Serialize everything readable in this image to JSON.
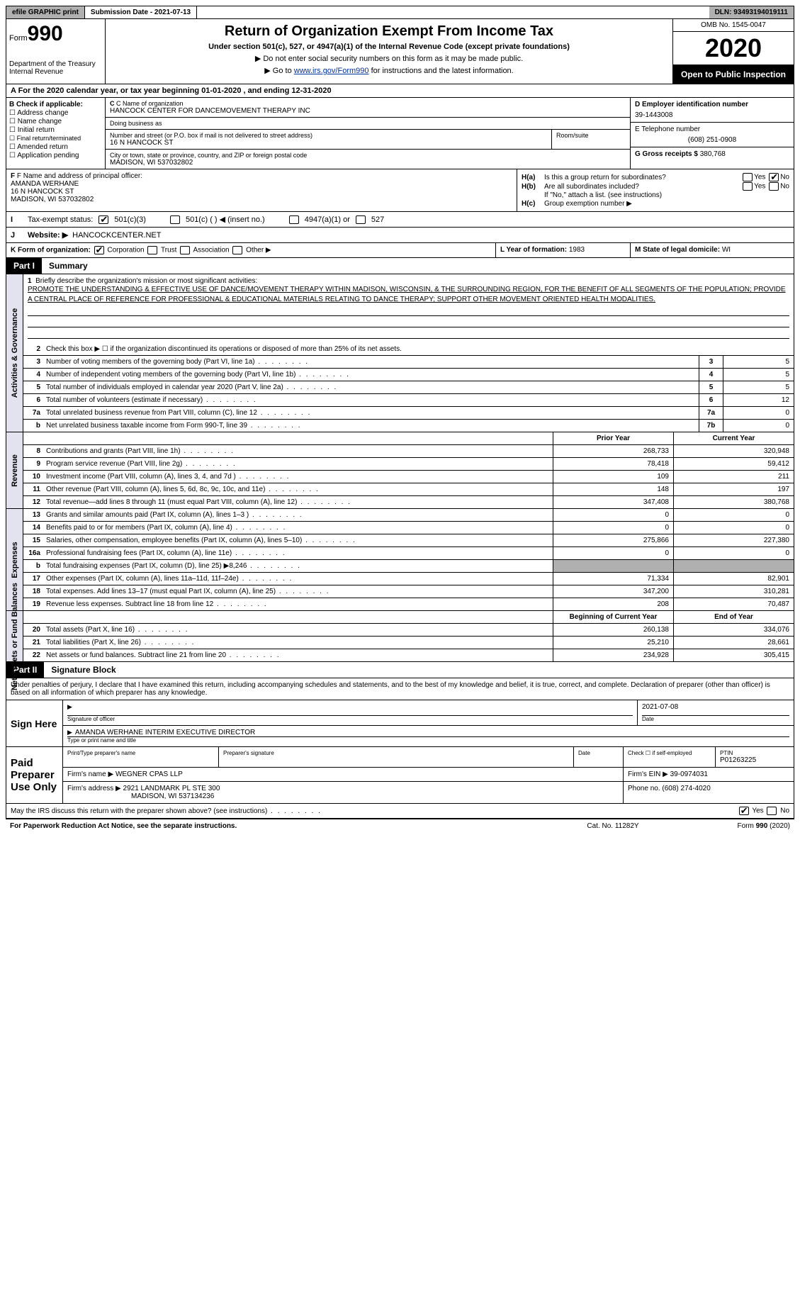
{
  "topbar": {
    "efile": "efile GRAPHIC print",
    "submission": "Submission Date - 2021-07-13",
    "dln": "DLN: 93493194019111"
  },
  "header": {
    "form_prefix": "Form",
    "form_number": "990",
    "dept": "Department of the Treasury",
    "irs": "Internal Revenue",
    "title": "Return of Organization Exempt From Income Tax",
    "sub1": "Under section 501(c), 527, or 4947(a)(1) of the Internal Revenue Code (except private foundations)",
    "sub2a": "▶ Do not enter social security numbers on this form as it may be made public.",
    "sub2b_pre": "▶ Go to ",
    "sub2b_link": "www.irs.gov/Form990",
    "sub2b_post": " for instructions and the latest information.",
    "omb": "OMB No. 1545-0047",
    "year": "2020",
    "inspect": "Open to Public Inspection"
  },
  "secA": "A For the 2020 calendar year, or tax year beginning 01-01-2020    , and ending 12-31-2020",
  "colB": {
    "title": "B Check if applicable:",
    "items": [
      "Address change",
      "Name change",
      "Initial return",
      "Final return/terminated",
      "Amended return",
      "Application pending"
    ]
  },
  "colC": {
    "name_label": "C Name of organization",
    "name": "HANCOCK CENTER FOR DANCEMOVEMENT THERAPY INC",
    "dba_label": "Doing business as",
    "dba": "",
    "street_label": "Number and street (or P.O. box if mail is not delivered to street address)",
    "room_label": "Room/suite",
    "street": "16 N HANCOCK ST",
    "city_label": "City or town, state or province, country, and ZIP or foreign postal code",
    "city": "MADISON, WI  537032802"
  },
  "colD": {
    "ein_label": "D Employer identification number",
    "ein": "39-1443008",
    "phone_label": "E Telephone number",
    "phone": "(608) 251-0908",
    "gross_label": "G Gross receipts $",
    "gross": "380,768"
  },
  "colF": {
    "label": "F Name and address of principal officer:",
    "name": "AMANDA WERHANE",
    "street": "16 N HANCOCK ST",
    "city": "MADISON, WI  537032802"
  },
  "colH": {
    "ha": "Is this a group return for subordinates?",
    "hb": "Are all subordinates included?",
    "hnote": "If \"No,\" attach a list. (see instructions)",
    "hc": "Group exemption number ▶"
  },
  "rowI": {
    "label": "Tax-exempt status:",
    "o1": "501(c)(3)",
    "o2": "501(c) (  ) ◀ (insert no.)",
    "o3": "4947(a)(1) or",
    "o4": "527"
  },
  "rowJ": {
    "label": "Website: ▶",
    "val": "HANCOCKCENTER.NET"
  },
  "rowK": {
    "label": "K Form of organization:",
    "o1": "Corporation",
    "o2": "Trust",
    "o3": "Association",
    "o4": "Other ▶",
    "l_label": "L Year of formation:",
    "l_val": "1983",
    "m_label": "M State of legal domicile:",
    "m_val": "WI"
  },
  "part1": {
    "num": "Part I",
    "title": "Summary"
  },
  "mission_label": "Briefly describe the organization's mission or most significant activities:",
  "mission": "PROMOTE THE UNDERSTANDING & EFFECTIVE USE OF DANCE/MOVEMENT THERAPY WITHIN MADISON, WISCONSIN, & THE SURROUNDING REGION, FOR THE BENEFIT OF ALL SEGMENTS OF THE POPULATION; PROVIDE A CENTRAL PLACE OF REFERENCE FOR PROFESSIONAL & EDUCATIONAL MATERIALS RELATING TO DANCE THERAPY; SUPPORT OTHER MOVEMENT ORIENTED HEALTH MODALITIES.",
  "gov": {
    "l2": "Check this box ▶ ☐  if the organization discontinued its operations or disposed of more than 25% of its net assets.",
    "rows": [
      {
        "n": "3",
        "d": "Number of voting members of the governing body (Part VI, line 1a)",
        "b": "3",
        "v": "5"
      },
      {
        "n": "4",
        "d": "Number of independent voting members of the governing body (Part VI, line 1b)",
        "b": "4",
        "v": "5"
      },
      {
        "n": "5",
        "d": "Total number of individuals employed in calendar year 2020 (Part V, line 2a)",
        "b": "5",
        "v": "5"
      },
      {
        "n": "6",
        "d": "Total number of volunteers (estimate if necessary)",
        "b": "6",
        "v": "12"
      },
      {
        "n": "7a",
        "d": "Total unrelated business revenue from Part VIII, column (C), line 12",
        "b": "7a",
        "v": "0"
      },
      {
        "n": "b",
        "d": "Net unrelated business taxable income from Form 990-T, line 39",
        "b": "7b",
        "v": "0"
      }
    ]
  },
  "rev": {
    "hdr_prior": "Prior Year",
    "hdr_curr": "Current Year",
    "rows": [
      {
        "n": "8",
        "d": "Contributions and grants (Part VIII, line 1h)",
        "p": "268,733",
        "c": "320,948"
      },
      {
        "n": "9",
        "d": "Program service revenue (Part VIII, line 2g)",
        "p": "78,418",
        "c": "59,412"
      },
      {
        "n": "10",
        "d": "Investment income (Part VIII, column (A), lines 3, 4, and 7d )",
        "p": "109",
        "c": "211"
      },
      {
        "n": "11",
        "d": "Other revenue (Part VIII, column (A), lines 5, 6d, 8c, 9c, 10c, and 11e)",
        "p": "148",
        "c": "197"
      },
      {
        "n": "12",
        "d": "Total revenue—add lines 8 through 11 (must equal Part VIII, column (A), line 12)",
        "p": "347,408",
        "c": "380,768"
      }
    ]
  },
  "exp": {
    "rows": [
      {
        "n": "13",
        "d": "Grants and similar amounts paid (Part IX, column (A), lines 1–3 )",
        "p": "0",
        "c": "0"
      },
      {
        "n": "14",
        "d": "Benefits paid to or for members (Part IX, column (A), line 4)",
        "p": "0",
        "c": "0"
      },
      {
        "n": "15",
        "d": "Salaries, other compensation, employee benefits (Part IX, column (A), lines 5–10)",
        "p": "275,866",
        "c": "227,380"
      },
      {
        "n": "16a",
        "d": "Professional fundraising fees (Part IX, column (A), line 11e)",
        "p": "0",
        "c": "0"
      },
      {
        "n": "b",
        "d": "Total fundraising expenses (Part IX, column (D), line 25) ▶8,246",
        "p": "",
        "c": "",
        "shade": true
      },
      {
        "n": "17",
        "d": "Other expenses (Part IX, column (A), lines 11a–11d, 11f–24e)",
        "p": "71,334",
        "c": "82,901"
      },
      {
        "n": "18",
        "d": "Total expenses. Add lines 13–17 (must equal Part IX, column (A), line 25)",
        "p": "347,200",
        "c": "310,281"
      },
      {
        "n": "19",
        "d": "Revenue less expenses. Subtract line 18 from line 12",
        "p": "208",
        "c": "70,487"
      }
    ]
  },
  "na": {
    "hdr_prior": "Beginning of Current Year",
    "hdr_curr": "End of Year",
    "rows": [
      {
        "n": "20",
        "d": "Total assets (Part X, line 16)",
        "p": "260,138",
        "c": "334,076"
      },
      {
        "n": "21",
        "d": "Total liabilities (Part X, line 26)",
        "p": "25,210",
        "c": "28,661"
      },
      {
        "n": "22",
        "d": "Net assets or fund balances. Subtract line 21 from line 20",
        "p": "234,928",
        "c": "305,415"
      }
    ]
  },
  "part2": {
    "num": "Part II",
    "title": "Signature Block"
  },
  "sig": {
    "decl": "Under penalties of perjury, I declare that I have examined this return, including accompanying schedules and statements, and to the best of my knowledge and belief, it is true, correct, and complete. Declaration of preparer (other than officer) is based on all information of which preparer has any knowledge.",
    "sign_here": "Sign Here",
    "sig_officer": "Signature of officer",
    "date_val": "2021-07-08",
    "date_lbl": "Date",
    "name_title": "AMANDA WERHANE  INTERIM EXECUTIVE DIRECTOR",
    "name_title_lbl": "Type or print name and title",
    "paid": "Paid Preparer Use Only",
    "prep_name_lbl": "Print/Type preparer's name",
    "prep_sig_lbl": "Preparer's signature",
    "prep_date_lbl": "Date",
    "self_emp": "Check ☐ if self-employed",
    "ptin_lbl": "PTIN",
    "ptin": "P01263225",
    "firm_name_lbl": "Firm's name   ▶",
    "firm_name": "WEGNER CPAS LLP",
    "firm_ein_lbl": "Firm's EIN ▶",
    "firm_ein": "39-0974031",
    "firm_addr_lbl": "Firm's address ▶",
    "firm_addr1": "2921 LANDMARK PL STE 300",
    "firm_addr2": "MADISON, WI  537134236",
    "firm_phone_lbl": "Phone no.",
    "firm_phone": "(608) 274-4020",
    "discuss": "May the IRS discuss this return with the preparer shown above? (see instructions)"
  },
  "footer": {
    "l": "For Paperwork Reduction Act Notice, see the separate instructions.",
    "c": "Cat. No. 11282Y",
    "r": "Form 990 (2020)"
  },
  "side": {
    "gov": "Activities & Governance",
    "rev": "Revenue",
    "exp": "Expenses",
    "na": "Net Assets or Fund Balances"
  }
}
